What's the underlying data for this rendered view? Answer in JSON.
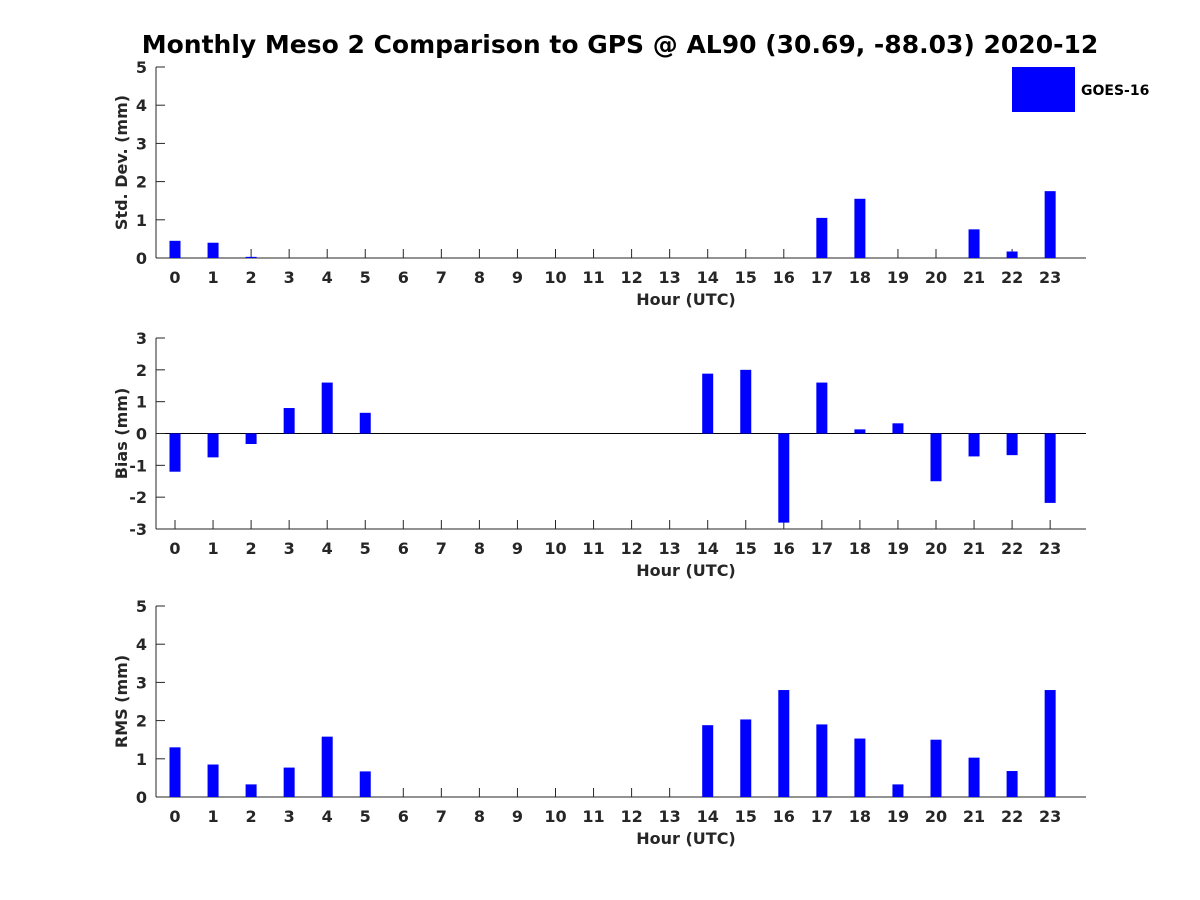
{
  "title": "Monthly Meso 2 Comparison to GPS @ AL90 (30.69, -88.03) 2020-12",
  "colors": {
    "bar": "#0000ff",
    "axis": "#262626"
  },
  "legend": {
    "label": "GOES-16",
    "placement": "top-right"
  },
  "chart_data": [
    {
      "type": "bar",
      "categories": [
        "0",
        "1",
        "2",
        "3",
        "4",
        "5",
        "6",
        "7",
        "8",
        "9",
        "10",
        "11",
        "12",
        "13",
        "14",
        "15",
        "16",
        "17",
        "18",
        "19",
        "20",
        "21",
        "22",
        "23"
      ],
      "series": [
        {
          "name": "GOES-16",
          "values": [
            0.45,
            0.4,
            0.03,
            0,
            0,
            0,
            0,
            0,
            0,
            0,
            0,
            0,
            0,
            0,
            0,
            0,
            0,
            1.05,
            1.55,
            0,
            0,
            0.75,
            0.17,
            1.75
          ]
        }
      ],
      "xlabel": "Hour (UTC)",
      "ylabel": "Std. Dev. (mm)",
      "ylim": [
        0,
        5
      ],
      "yticks": [
        "0",
        "1",
        "2",
        "3",
        "4",
        "5"
      ]
    },
    {
      "type": "bar",
      "categories": [
        "0",
        "1",
        "2",
        "3",
        "4",
        "5",
        "6",
        "7",
        "8",
        "9",
        "10",
        "11",
        "12",
        "13",
        "14",
        "15",
        "16",
        "17",
        "18",
        "19",
        "20",
        "21",
        "22",
        "23"
      ],
      "series": [
        {
          "name": "GOES-16",
          "values": [
            -1.2,
            -0.75,
            -0.33,
            0.8,
            1.6,
            0.65,
            0,
            0,
            0,
            0,
            0,
            0,
            0,
            0,
            1.88,
            2.0,
            -2.8,
            1.6,
            0.13,
            0.32,
            -1.5,
            -0.72,
            -0.68,
            -2.18
          ]
        }
      ],
      "xlabel": "Hour (UTC)",
      "ylabel": "Bias (mm)",
      "ylim": [
        -3,
        3
      ],
      "yticks": [
        "-3",
        "-2",
        "-1",
        "0",
        "1",
        "2",
        "3"
      ]
    },
    {
      "type": "bar",
      "categories": [
        "0",
        "1",
        "2",
        "3",
        "4",
        "5",
        "6",
        "7",
        "8",
        "9",
        "10",
        "11",
        "12",
        "13",
        "14",
        "15",
        "16",
        "17",
        "18",
        "19",
        "20",
        "21",
        "22",
        "23"
      ],
      "series": [
        {
          "name": "GOES-16",
          "values": [
            1.3,
            0.85,
            0.33,
            0.77,
            1.58,
            0.67,
            0,
            0,
            0,
            0,
            0,
            0,
            0,
            0,
            1.88,
            2.03,
            2.8,
            1.9,
            1.53,
            0.33,
            1.5,
            1.03,
            0.68,
            2.8
          ]
        }
      ],
      "xlabel": "Hour (UTC)",
      "ylabel": "RMS (mm)",
      "ylim": [
        0,
        5
      ],
      "yticks": [
        "0",
        "1",
        "2",
        "3",
        "4",
        "5"
      ]
    }
  ]
}
